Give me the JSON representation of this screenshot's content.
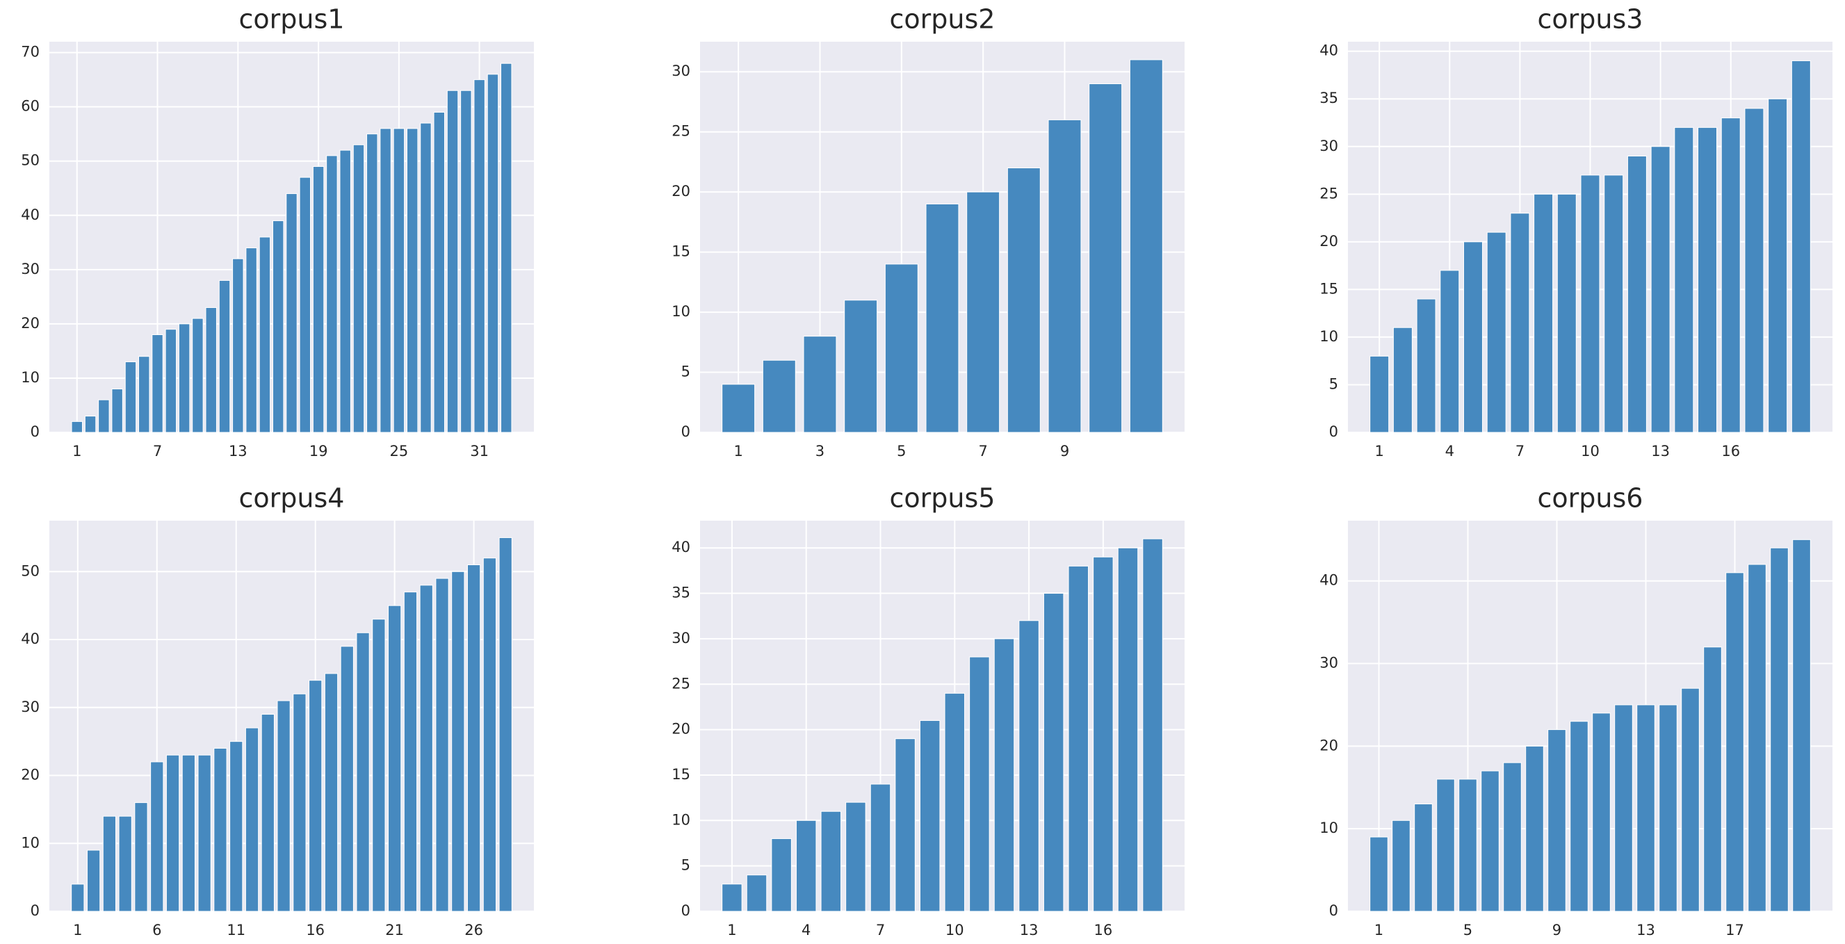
{
  "chart_data": [
    {
      "type": "bar",
      "title": "corpus1",
      "color": "#4689bf",
      "grid": true,
      "x": [
        1,
        2,
        3,
        4,
        5,
        6,
        7,
        8,
        9,
        10,
        11,
        12,
        13,
        14,
        15,
        16,
        17,
        18,
        19,
        20,
        21,
        22,
        23,
        24,
        25,
        26,
        27,
        28,
        29,
        30,
        31,
        32,
        33
      ],
      "values": [
        2,
        3,
        6,
        8,
        13,
        14,
        18,
        19,
        20,
        21,
        23,
        28,
        32,
        34,
        36,
        39,
        44,
        47,
        49,
        51,
        52,
        53,
        55,
        56,
        56,
        56,
        57,
        59,
        63,
        63,
        65,
        66,
        68
      ],
      "xlim": [
        -1.06,
        35.06
      ],
      "xticks": [
        1,
        7,
        13,
        19,
        25,
        31
      ],
      "ylim": [
        0,
        72
      ],
      "yticks": [
        0,
        10,
        20,
        30,
        40,
        50,
        60,
        70
      ]
    },
    {
      "type": "bar",
      "title": "corpus2",
      "color": "#4689bf",
      "grid": true,
      "x": [
        1,
        2,
        3,
        4,
        5,
        6,
        7,
        8,
        9,
        10,
        11
      ],
      "values": [
        4,
        6,
        8,
        11,
        14,
        19,
        20,
        22,
        26,
        29,
        31
      ],
      "xlim": [
        0.06,
        11.94
      ],
      "xticks": [
        1,
        3,
        5,
        7,
        9
      ],
      "ylim": [
        0,
        32.5
      ],
      "yticks": [
        0,
        5,
        10,
        15,
        20,
        25,
        30
      ]
    },
    {
      "type": "bar",
      "title": "corpus3",
      "color": "#4689bf",
      "grid": true,
      "x": [
        1,
        2,
        3,
        4,
        5,
        6,
        7,
        8,
        9,
        10,
        11,
        12,
        13,
        14,
        15,
        16,
        17,
        18,
        19
      ],
      "values": [
        8,
        11,
        14,
        17,
        20,
        21,
        23,
        25,
        25,
        27,
        27,
        29,
        30,
        32,
        32,
        33,
        34,
        35,
        39
      ],
      "xlim": [
        -0.34,
        20.34
      ],
      "xticks": [
        1,
        4,
        7,
        10,
        13,
        16
      ],
      "ylim": [
        0,
        41
      ],
      "yticks": [
        0,
        5,
        10,
        15,
        20,
        25,
        30,
        35,
        40
      ]
    },
    {
      "type": "bar",
      "title": "corpus4",
      "color": "#4689bf",
      "grid": true,
      "x": [
        1,
        2,
        3,
        4,
        5,
        6,
        7,
        8,
        9,
        10,
        11,
        12,
        13,
        14,
        15,
        16,
        17,
        18,
        19,
        20,
        21,
        22,
        23,
        24,
        25,
        26,
        27,
        28
      ],
      "values": [
        4,
        9,
        14,
        14,
        16,
        22,
        23,
        23,
        23,
        24,
        25,
        27,
        29,
        31,
        32,
        34,
        35,
        39,
        41,
        43,
        45,
        47,
        48,
        49,
        50,
        51,
        52,
        55
      ],
      "xlim": [
        -0.79,
        29.79
      ],
      "xticks": [
        1,
        6,
        11,
        16,
        21,
        26
      ],
      "ylim": [
        0,
        57.5
      ],
      "yticks": [
        0,
        10,
        20,
        30,
        40,
        50
      ]
    },
    {
      "type": "bar",
      "title": "corpus5",
      "color": "#4689bf",
      "grid": true,
      "x": [
        1,
        2,
        3,
        4,
        5,
        6,
        7,
        8,
        9,
        10,
        11,
        12,
        13,
        14,
        15,
        16,
        17,
        18
      ],
      "values": [
        3,
        4,
        8,
        10,
        11,
        12,
        14,
        19,
        21,
        24,
        28,
        30,
        32,
        35,
        38,
        39,
        40,
        41
      ],
      "xlim": [
        -0.29,
        19.29
      ],
      "xticks": [
        1,
        4,
        7,
        10,
        13,
        16
      ],
      "ylim": [
        0,
        43
      ],
      "yticks": [
        0,
        5,
        10,
        15,
        20,
        25,
        30,
        35,
        40
      ]
    },
    {
      "type": "bar",
      "title": "corpus6",
      "color": "#4689bf",
      "grid": true,
      "x": [
        1,
        2,
        3,
        4,
        5,
        6,
        7,
        8,
        9,
        10,
        11,
        12,
        13,
        14,
        15,
        16,
        17,
        18,
        19,
        20
      ],
      "values": [
        9,
        11,
        13,
        16,
        16,
        17,
        18,
        20,
        22,
        23,
        24,
        25,
        25,
        25,
        27,
        32,
        41,
        42,
        44,
        45
      ],
      "xlim": [
        -0.39,
        21.39
      ],
      "xticks": [
        1,
        5,
        9,
        13,
        17
      ],
      "ylim": [
        0,
        47.3
      ],
      "yticks": [
        0,
        10,
        20,
        30,
        40
      ]
    }
  ]
}
